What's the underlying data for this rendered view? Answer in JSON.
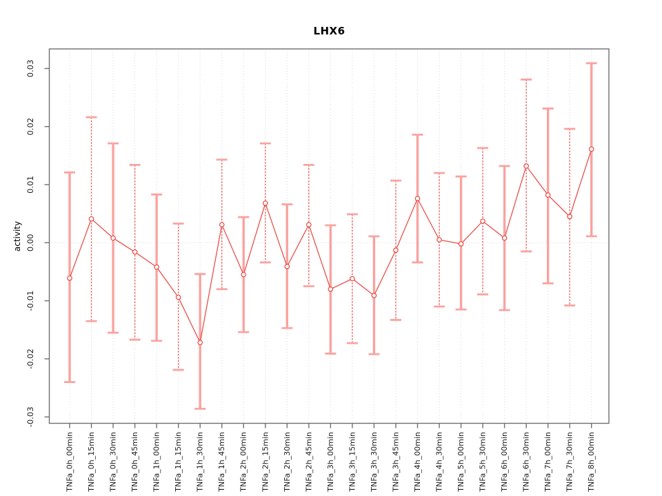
{
  "chart_data": {
    "type": "line",
    "title": "LHX6",
    "ylabel": "activity",
    "xlabel": "",
    "legend_position": "none",
    "grid": {
      "vertical_dotted_per_category": true,
      "horizontal_dotted_at_zero": true
    },
    "ylim": [
      -0.031,
      0.0333
    ],
    "yticks": [
      0.03,
      0.02,
      0.01,
      0.0,
      -0.01,
      -0.02,
      -0.03
    ],
    "ytick_labels": [
      "0.03",
      "0.02",
      "0.01",
      "0.00",
      "-0.01",
      "-0.02",
      "-0.03"
    ],
    "x_labels_rotated_degrees": 90,
    "categories": [
      "TNFa_0h_00min",
      "TNFa_0h_15min",
      "TNFa_0h_30min",
      "TNFa_0h_45min",
      "TNFa_1h_00min",
      "TNFa_1h_15min",
      "TNFa_1h_30min",
      "TNFa_1h_45min",
      "TNFa_2h_00min",
      "TNFa_2h_15min",
      "TNFa_2h_30min",
      "TNFa_2h_45min",
      "TNFa_3h_00min",
      "TNFa_3h_15min",
      "TNFa_3h_30min",
      "TNFa_3h_45min",
      "TNFa_4h_00min",
      "TNFa_4h_30min",
      "TNFa_5h_00min",
      "TNFa_5h_30min",
      "TNFa_6h_00min",
      "TNFa_6h_30min",
      "TNFa_7h_00min",
      "TNFa_7h_30min",
      "TNFa_8h_00min"
    ],
    "series": [
      {
        "name": "activity",
        "marker": "open-circle",
        "values": [
          -0.0061,
          0.0041,
          0.0008,
          -0.0016,
          -0.0042,
          -0.0094,
          -0.0172,
          0.0031,
          -0.0055,
          0.0068,
          -0.0041,
          0.0031,
          -0.008,
          -0.0062,
          -0.0091,
          -0.0013,
          0.0076,
          0.0005,
          -0.0002,
          0.0037,
          0.0008,
          0.0132,
          0.0082,
          0.0045,
          0.0161
        ],
        "error_upper": [
          0.0121,
          0.0216,
          0.0171,
          0.0134,
          0.0083,
          0.0033,
          -0.0054,
          0.0143,
          0.0044,
          0.0171,
          0.0066,
          0.0134,
          0.003,
          0.0049,
          0.0011,
          0.0107,
          0.0186,
          0.012,
          0.0114,
          0.0163,
          0.0132,
          0.0281,
          0.0231,
          0.0196,
          0.0309
        ],
        "error_lower": [
          -0.024,
          -0.0135,
          -0.0155,
          -0.0167,
          -0.0169,
          -0.0219,
          -0.0286,
          -0.008,
          -0.0154,
          -0.0034,
          -0.0147,
          -0.0075,
          -0.0191,
          -0.0173,
          -0.0192,
          -0.0133,
          -0.0034,
          -0.011,
          -0.0115,
          -0.0089,
          -0.0116,
          -0.0015,
          -0.007,
          -0.0108,
          0.0011
        ]
      }
    ],
    "colors": {
      "series_line": "#e8504a",
      "marker_stroke": "#e8504a",
      "error_bar_pale": "#f9a3a0",
      "error_bar_dark": "#e8504a",
      "gridline": "#d6d6d6",
      "axis": "#6e6e6e",
      "tick_text": "#1c1c1c",
      "background": "#ffffff"
    }
  }
}
